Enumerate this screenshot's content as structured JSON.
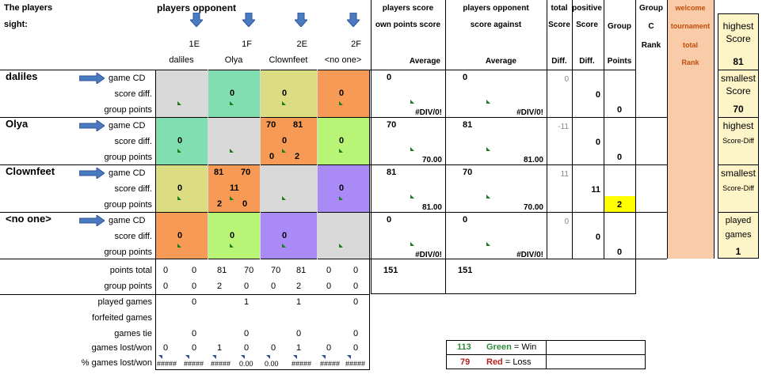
{
  "header": {
    "players_sight_1": "The players",
    "players_sight_2": "sight:",
    "players_opponent": "players opponent",
    "players_score": "players score",
    "own_points_score": "own points score",
    "players_opponent_r": "players opponent",
    "score_against": "score against",
    "total": "total",
    "score1": "Score",
    "positive": "positive",
    "score2": "Score",
    "group": "Group",
    "group_c1": "Group",
    "group_c2": "C",
    "rank": "Rank",
    "welcome": "welcome",
    "tournament": "tournament",
    "total2": "total",
    "rank2": "Rank",
    "average1": "Average",
    "average2": "Average",
    "diff1": "Diff.",
    "diff2": "Diff.",
    "points": "Points"
  },
  "columns": [
    {
      "code": "1E",
      "name": "daliles"
    },
    {
      "code": "1F",
      "name": "Olya"
    },
    {
      "code": "2E",
      "name": "Clownfeet"
    },
    {
      "code": "2F",
      "name": "<no one>"
    }
  ],
  "row_labels": {
    "game": "game CD",
    "score": "score diff.",
    "group": "group points"
  },
  "players": [
    {
      "name": "daliles",
      "cells": [
        {
          "color": "#d9d9d9",
          "g1": "",
          "g2": "",
          "s": "",
          "p1": "",
          "p2": ""
        },
        {
          "color": "#80deb0",
          "g1": "",
          "g2": "",
          "s": "0",
          "p1": "",
          "p2": ""
        },
        {
          "color": "#dcdc82",
          "g1": "",
          "g2": "",
          "s": "0",
          "p1": "",
          "p2": ""
        },
        {
          "color": "#f79a55",
          "g1": "",
          "g2": "",
          "s": "0",
          "p1": "",
          "p2": ""
        }
      ],
      "own_score": "0",
      "own_avg": "#DIV/0!",
      "opp_score": "0",
      "opp_avg": "#DIV/0!",
      "total_diff": "0",
      "pos_diff": "0",
      "group_points": "0"
    },
    {
      "name": "Olya",
      "cells": [
        {
          "color": "#80deb0",
          "g1": "",
          "g2": "",
          "s": "0",
          "p1": "",
          "p2": ""
        },
        {
          "color": "#d9d9d9",
          "g1": "",
          "g2": "",
          "s": "",
          "p1": "",
          "p2": ""
        },
        {
          "color": "#f79a55",
          "g1": "70",
          "g2": "81",
          "s": "0",
          "p1": "0",
          "p2": "2"
        },
        {
          "color": "#b8f576",
          "g1": "",
          "g2": "",
          "s": "0",
          "p1": "",
          "p2": ""
        }
      ],
      "own_score": "70",
      "own_avg": "70.00",
      "opp_score": "81",
      "opp_avg": "81.00",
      "total_diff": "-11",
      "pos_diff": "0",
      "group_points": "0"
    },
    {
      "name": "Clownfeet",
      "cells": [
        {
          "color": "#dcdc82",
          "g1": "",
          "g2": "",
          "s": "0",
          "p1": "",
          "p2": ""
        },
        {
          "color": "#f79a55",
          "g1": "81",
          "g2": "70",
          "s": "11",
          "p1": "2",
          "p2": "0"
        },
        {
          "color": "#d9d9d9",
          "g1": "",
          "g2": "",
          "s": "",
          "p1": "",
          "p2": ""
        },
        {
          "color": "#a98af7",
          "g1": "",
          "g2": "",
          "s": "0",
          "p1": "",
          "p2": ""
        }
      ],
      "own_score": "81",
      "own_avg": "81.00",
      "opp_score": "70",
      "opp_avg": "70.00",
      "total_diff": "11",
      "pos_diff": "11",
      "group_points": "2"
    },
    {
      "name": "<no one>",
      "cells": [
        {
          "color": "#f79a55",
          "g1": "",
          "g2": "",
          "s": "0",
          "p1": "",
          "p2": ""
        },
        {
          "color": "#b8f576",
          "g1": "",
          "g2": "",
          "s": "0",
          "p1": "",
          "p2": ""
        },
        {
          "color": "#a98af7",
          "g1": "",
          "g2": "",
          "s": "0",
          "p1": "",
          "p2": ""
        },
        {
          "color": "#d9d9d9",
          "g1": "",
          "g2": "",
          "s": "",
          "p1": "",
          "p2": ""
        }
      ],
      "own_score": "0",
      "own_avg": "#DIV/0!",
      "opp_score": "0",
      "opp_avg": "#DIV/0!",
      "total_diff": "0",
      "pos_diff": "0",
      "group_points": "0"
    }
  ],
  "summary_labels": [
    "points total",
    "group points",
    "played games",
    "forfeited games",
    "games tie",
    "games lost/won",
    "% games lost/won"
  ],
  "summary": {
    "points_total": [
      [
        "0",
        "0"
      ],
      [
        "81",
        "70"
      ],
      [
        "70",
        "81"
      ],
      [
        "0",
        "0"
      ]
    ],
    "group_points": [
      [
        "0",
        "0"
      ],
      [
        "2",
        "0"
      ],
      [
        "0",
        "2"
      ],
      [
        "0",
        "0"
      ]
    ],
    "played_games": [
      "0",
      "1",
      "1",
      "0"
    ],
    "forfeited_games": [
      "",
      "",
      "",
      ""
    ],
    "games_tie": [
      "0",
      "0",
      "0",
      "0"
    ],
    "games_lost_won": [
      [
        "0",
        "0"
      ],
      [
        "1",
        "0"
      ],
      [
        "0",
        "1"
      ],
      [
        "0",
        "0"
      ]
    ],
    "pct_lost_won": [
      [
        "#####",
        "#####"
      ],
      [
        "#####",
        "0.00"
      ],
      [
        "0.00",
        "#####"
      ],
      [
        "#####",
        "#####"
      ]
    ]
  },
  "totals": {
    "own": "151",
    "opp": "151"
  },
  "right_panel": [
    {
      "title1": "highest",
      "title2": "Score",
      "value": "81"
    },
    {
      "title1": "smallest",
      "title2": "Score",
      "value": "70"
    },
    {
      "title1": "highest",
      "title2": "Score-Diff",
      "value": ""
    },
    {
      "title1": "smallest",
      "title2": "Score-Diff",
      "value": ""
    },
    {
      "title1": "played",
      "title2": "games",
      "value": "1"
    }
  ],
  "legend": [
    {
      "num": "113",
      "word": "Green",
      "rest": " = Win",
      "color": "#2e8b3a"
    },
    {
      "num": "79",
      "word": "Red",
      "rest": " = Loss",
      "color": "#b22222"
    }
  ],
  "colors": {
    "yellow_highlight": "#ffff00",
    "peach": "#f9cba8",
    "light_yellow": "#fdf5c8"
  }
}
